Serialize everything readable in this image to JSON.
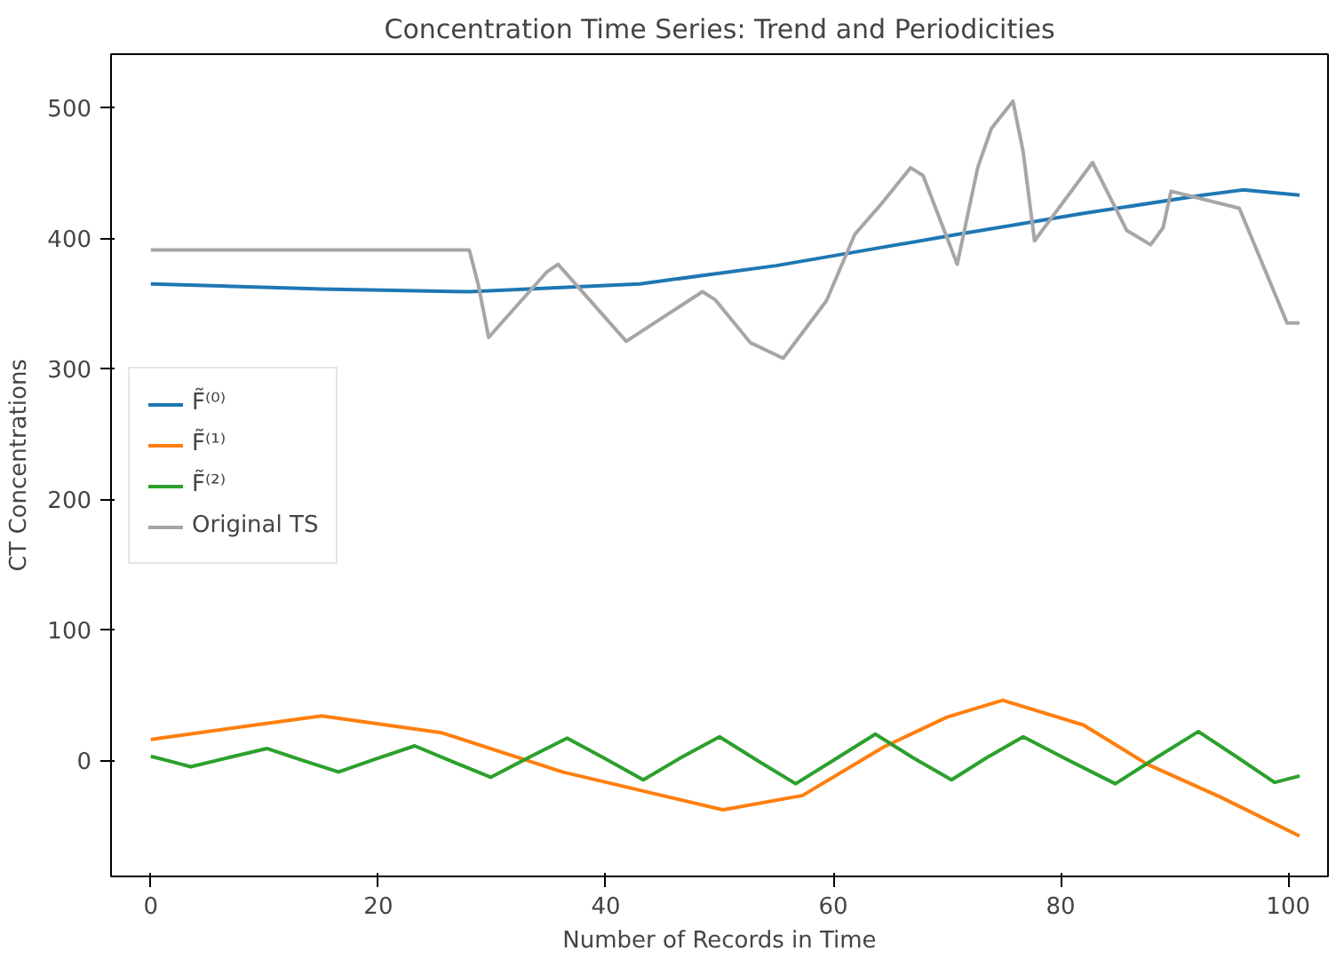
{
  "chart_data": {
    "type": "line",
    "title": "Concentration Time Series: Trend and Periodicities",
    "xlabel": "Number of Records in Time",
    "ylabel": "CT Concentrations",
    "xlim": [
      -3.5,
      103.5
    ],
    "ylim": [
      -89,
      541
    ],
    "xticks": [
      0,
      20,
      40,
      60,
      80,
      100
    ],
    "yticks": [
      0,
      100,
      200,
      300,
      400,
      500
    ],
    "grid": false,
    "legend": "left",
    "line_style": "solid",
    "series": [
      {
        "name": "F̃⁽⁰⁾",
        "color": "#1f77b4",
        "x": [
          0,
          15,
          28,
          43,
          55,
          61,
          71,
          82,
          92.5,
          96,
          101
        ],
        "values": [
          365,
          361,
          359,
          365,
          379,
          388,
          403,
          419,
          433,
          437,
          433
        ]
      },
      {
        "name": "F̃⁽¹⁾",
        "color": "#ff7f0e",
        "x": [
          0,
          15,
          25.6,
          36.2,
          50.3,
          57.3,
          64.4,
          70,
          74.9,
          82,
          87.6,
          94,
          101
        ],
        "values": [
          16,
          34,
          21,
          -9,
          -38,
          -27,
          10,
          33,
          46,
          27,
          -3,
          -28,
          -58
        ]
      },
      {
        "name": "F̃⁽²⁾",
        "color": "#2ca02c",
        "x": [
          0,
          1.8,
          3.5,
          6.8,
          10.2,
          13.3,
          16.5,
          19.8,
          23.2,
          26.5,
          29.9,
          33.2,
          36.6,
          40,
          43.3,
          46.6,
          50,
          53.3,
          56.7,
          60.2,
          63.7,
          67,
          70.4,
          73.5,
          76.7,
          80.7,
          84.8,
          88.4,
          92.1,
          95.4,
          98.8,
          101
        ],
        "values": [
          3,
          -1,
          -5,
          2,
          9,
          0,
          -9,
          1,
          11,
          -1,
          -13,
          2,
          17,
          1,
          -15,
          2,
          18,
          0,
          -18,
          1,
          20,
          2,
          -15,
          2,
          18,
          0,
          -18,
          2,
          22,
          3,
          -17,
          -12
        ]
      },
      {
        "name": "Original TS",
        "color": "#a6a6a6",
        "x": [
          0,
          28,
          28.8,
          29.7,
          34.8,
          35.8,
          41.8,
          48.5,
          49.6,
          52.7,
          55.6,
          59.4,
          61.9,
          64.3,
          66.8,
          67.9,
          70.9,
          72.7,
          73.9,
          75.8,
          76.7,
          77.7,
          82.8,
          85.8,
          87.9,
          89,
          89.7,
          95.7,
          99.9,
          101
        ],
        "values": [
          391,
          391,
          364,
          324,
          374,
          380,
          321,
          359,
          353,
          320,
          308,
          352,
          403,
          427,
          454,
          448,
          380,
          454,
          484,
          505,
          466,
          398,
          458,
          406,
          395,
          408,
          436,
          423,
          335,
          335
        ]
      }
    ]
  }
}
